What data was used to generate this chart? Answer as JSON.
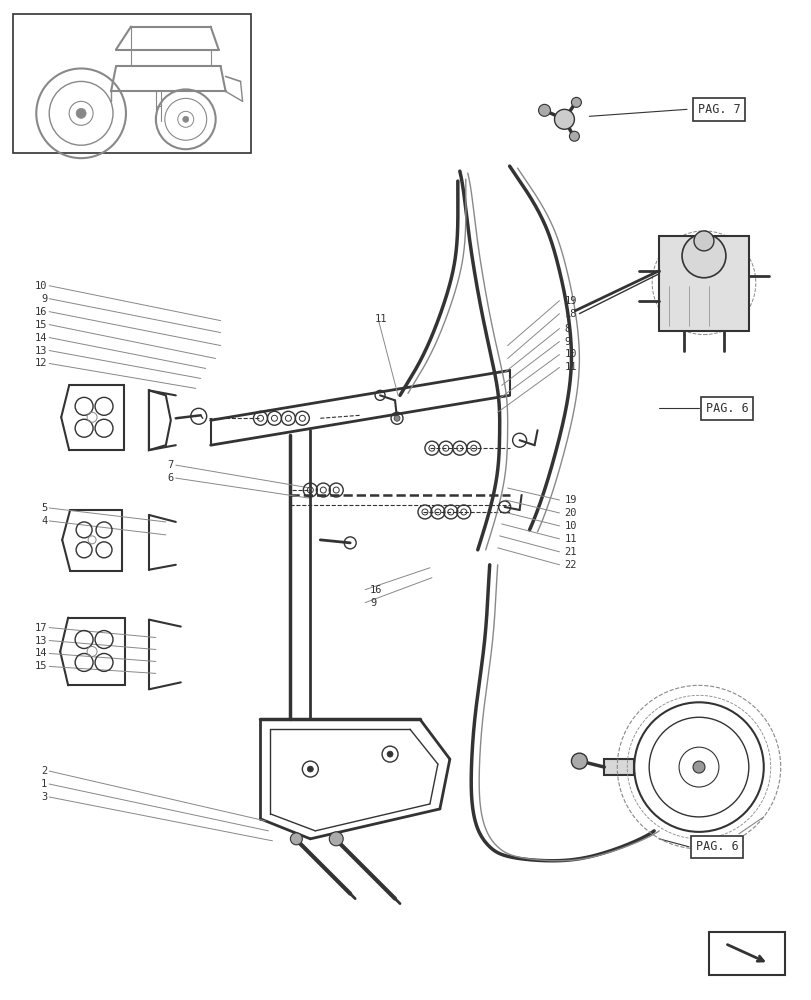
{
  "bg_color": "#ffffff",
  "line_color": "#888888",
  "dark_color": "#333333",
  "page_width": 8.12,
  "page_height": 10.0,
  "pag7_label": "PAG. 7",
  "pag6_label_top": "PAG. 6",
  "pag6_label_bot": "PAG. 6"
}
